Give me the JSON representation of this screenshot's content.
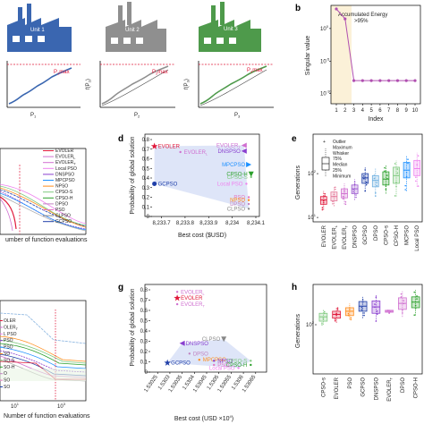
{
  "figure": {
    "panel_letters": [
      "b",
      "d",
      "e",
      "g",
      "h"
    ],
    "panel_a": {
      "units": [
        {
          "label": "Unit 1",
          "color": "#3a66b0",
          "pmax": "P",
          "pmax_sub": "1",
          "pmax_suffix": "max",
          "f_label": "f(P",
          "f_sub": "1",
          "x_label": "P",
          "x_sub": "1"
        },
        {
          "label": "Unit 2",
          "color": "#8f8f8f",
          "pmax": "P",
          "pmax_sub": "2",
          "pmax_suffix": "max",
          "f_label": "f(P",
          "f_sub": "2",
          "x_label": "P",
          "x_sub": "2"
        },
        {
          "label": "Unit 3",
          "color": "#4e9a4b",
          "pmax": "P",
          "pmax_sub": "3",
          "pmax_suffix": "max",
          "f_label": "f(P",
          "f_sub": "3",
          "x_label": "P",
          "x_sub": "3"
        }
      ]
    },
    "panel_c_legend": [
      "EVOLER",
      "EVOLER",
      "EVOLER",
      "Local PSO",
      "DNSPSO",
      "MPCPSO",
      "NPSO",
      "CPSO-S",
      "CPSO-H",
      "DPSO",
      "PSO",
      "CLPSO",
      "GCPSO"
    ],
    "panel_c_xlabel": "umber of function evaluations",
    "panel_f_xlabel": "Number of function evaluations",
    "panel_f_legend": [
      "OLER",
      "OLER",
      "L PSO",
      "PSO",
      "PSO",
      "SO",
      "SO-S",
      "SO-H",
      "O",
      "SO",
      "SO"
    ],
    "panel_f_ticks": [
      "10",
      "10"
    ],
    "panel_f_tick_exps": [
      "1",
      "3"
    ]
  },
  "chart_data": [
    {
      "panel": "b",
      "type": "line",
      "x": [
        1,
        2,
        3,
        4,
        5,
        6,
        7,
        8,
        9,
        10
      ],
      "y": [
        1000.0,
        30.0,
        1e-08,
        1e-08,
        1e-08,
        1e-08,
        1e-08,
        1e-08,
        1e-08,
        1e-08
      ],
      "xlabel": "Index",
      "ylabel": "Singular value",
      "xticks": [
        "1",
        "2",
        "3",
        "4",
        "5",
        "6",
        "7",
        "8",
        "9",
        "10"
      ],
      "yticks": [
        "10",
        "10",
        "10",
        "10"
      ],
      "ytick_exps": [
        "0",
        "-5",
        "-10",
        ""
      ],
      "annotation": "Accumulated Energy >95%",
      "color": "#b04fb0"
    },
    {
      "panel": "d",
      "type": "scatter",
      "xlabel": "Best cost ($USD)",
      "ylabel": "Probability of global solution",
      "xticks": [
        "8,233.7",
        "8,233.8",
        "8,233.9",
        "8,234",
        "8,234.1"
      ],
      "yticks": [
        "0",
        "0.1",
        "0.2",
        "0.3",
        "0.4",
        "0.5",
        "0.6",
        "0.7",
        "0.8"
      ],
      "ylim": [
        0,
        0.8
      ],
      "points": [
        {
          "name": "EVOLER",
          "x": 8233.67,
          "y": 0.73,
          "color": "#e0183a",
          "marker": "star"
        },
        {
          "name": "EVOLER",
          "sub": "L",
          "x": 8233.78,
          "y": 0.67,
          "color": "#d070d0",
          "marker": "none"
        },
        {
          "name": "EVOLER",
          "sub": "T",
          "x": 8234.05,
          "y": 0.74,
          "color": "#d070d0",
          "marker": "tri-left"
        },
        {
          "name": "DNSPSO",
          "x": 8234.05,
          "y": 0.68,
          "color": "#8a3fcf",
          "marker": "tri-left"
        },
        {
          "name": "MPCPSO",
          "x": 8234.07,
          "y": 0.54,
          "color": "#1e90ff",
          "marker": "tri-right"
        },
        {
          "name": "CPSO-H",
          "x": 8234.08,
          "y": 0.44,
          "color": "#2ca02c",
          "marker": "tri-down"
        },
        {
          "name": "CPSO-S",
          "x": 8234.08,
          "y": 0.41,
          "color": "#7fc97f",
          "marker": "none"
        },
        {
          "name": "Local PSO",
          "x": 8234.06,
          "y": 0.34,
          "color": "#ee82ee",
          "marker": "none"
        },
        {
          "name": "PSO",
          "x": 8234.07,
          "y": 0.2,
          "color": "#e377c2",
          "marker": "none"
        },
        {
          "name": "NPSO",
          "x": 8234.07,
          "y": 0.17,
          "color": "#ff8c1a",
          "marker": "none"
        },
        {
          "name": "DPSO",
          "x": 8234.07,
          "y": 0.13,
          "color": "#c083c0",
          "marker": "none"
        },
        {
          "name": "CLPSO",
          "x": 8234.07,
          "y": 0.08,
          "color": "#888888",
          "marker": "none"
        },
        {
          "name": "GCPSO",
          "x": 8233.67,
          "y": 0.34,
          "color": "#1f3fa8",
          "marker": "circle"
        }
      ]
    },
    {
      "panel": "e",
      "type": "box",
      "ylabel": "Generations",
      "yticks": [
        "10",
        "10"
      ],
      "ytick_exps": [
        "2",
        "1"
      ],
      "categories": [
        "EVOLER",
        "EVOLER",
        "EVOLER",
        "DNSPSO",
        "GCPSO",
        "DPSO",
        "CPSO-s",
        "CPSO-H",
        "MCPSO",
        "Local PSO"
      ],
      "category_subs": [
        "",
        "L",
        "T",
        "",
        "",
        "",
        "",
        "",
        "",
        ""
      ],
      "legend": [
        "Outlier",
        "Maximum",
        "Whisker",
        "75%",
        "Median",
        "25%",
        "Minimum"
      ],
      "colors": [
        "#e0183a",
        "#e47b9b",
        "#d070d0",
        "#9b59d0",
        "#1f3fa8",
        "#6fb0e0",
        "#2ca02c",
        "#7fc97f",
        "#1e90ff",
        "#ee82ee"
      ]
    },
    {
      "panel": "g",
      "type": "scatter",
      "xlabel": "Best cost (USD ×10",
      "xlabel_exp": "4",
      "xlabel_suffix": ")",
      "ylabel": "Probability of global solution",
      "xticks": [
        "1.53025",
        "1.5303",
        "1.53035",
        "1.5304",
        "1.53045",
        "1.5305",
        "1.53055",
        "1.5306",
        "1.53065"
      ],
      "yticks": [
        "0",
        "0.1",
        "0.2",
        "0.3",
        "0.4",
        "0.5",
        "0.6",
        "0.7",
        "0.8"
      ],
      "ylim": [
        0,
        0.8
      ],
      "points": [
        {
          "name": "EVOLER",
          "sub": "L",
          "x": 1.53033,
          "y": 0.78,
          "color": "#d070d0",
          "marker": "none"
        },
        {
          "name": "EVOLER",
          "x": 1.53033,
          "y": 0.72,
          "color": "#e0183a",
          "marker": "star"
        },
        {
          "name": "EVOLER",
          "sub": "T",
          "x": 1.53033,
          "y": 0.66,
          "color": "#d070d0",
          "marker": "none"
        },
        {
          "name": "DNSPSO",
          "x": 1.53035,
          "y": 0.28,
          "color": "#8a3fcf",
          "marker": "tri-left"
        },
        {
          "name": "CLPSO",
          "x": 1.53052,
          "y": 0.32,
          "color": "#888888",
          "marker": "tri-down"
        },
        {
          "name": "DPSO",
          "x": 1.53038,
          "y": 0.18,
          "color": "#c083c0",
          "marker": "none"
        },
        {
          "name": "MPCPSO",
          "x": 1.53042,
          "y": 0.12,
          "color": "#ff8c1a",
          "marker": "none"
        },
        {
          "name": "NPSO",
          "x": 1.53048,
          "y": 0.11,
          "color": "#8a3fcf",
          "marker": "none"
        },
        {
          "name": "CPSO-S",
          "x": 1.53063,
          "y": 0.11,
          "color": "#7fc97f",
          "marker": "none"
        },
        {
          "name": "CPSO-H",
          "x": 1.53063,
          "y": 0.07,
          "color": "#2ca02c",
          "marker": "none"
        },
        {
          "name": "GCPSO",
          "x": 1.53029,
          "y": 0.09,
          "color": "#1f3fa8",
          "marker": "star"
        },
        {
          "name": "PSO",
          "x": 1.53048,
          "y": 0.07,
          "color": "#e377c2",
          "marker": "none"
        },
        {
          "name": "Local PSO",
          "x": 1.53058,
          "y": 0.04,
          "color": "#ee82ee",
          "marker": "none"
        }
      ]
    },
    {
      "panel": "h",
      "type": "box",
      "ylabel": "Generations",
      "yticks": [
        "10"
      ],
      "ytick_exps": [
        "2"
      ],
      "categories": [
        "CPSO-s",
        "EVOLER",
        "PSO",
        "GCPSO",
        "DNSPSO",
        "EVOLER",
        "DPSO",
        "CPSO-H"
      ],
      "category_subs": [
        "",
        "",
        "",
        "",
        "",
        "T",
        "",
        ""
      ],
      "colors": [
        "#7fc97f",
        "#e0183a",
        "#ff8c1a",
        "#1f3fa8",
        "#8a3fcf",
        "#d070d0",
        "#d070d0",
        "#2ca02c"
      ]
    }
  ]
}
